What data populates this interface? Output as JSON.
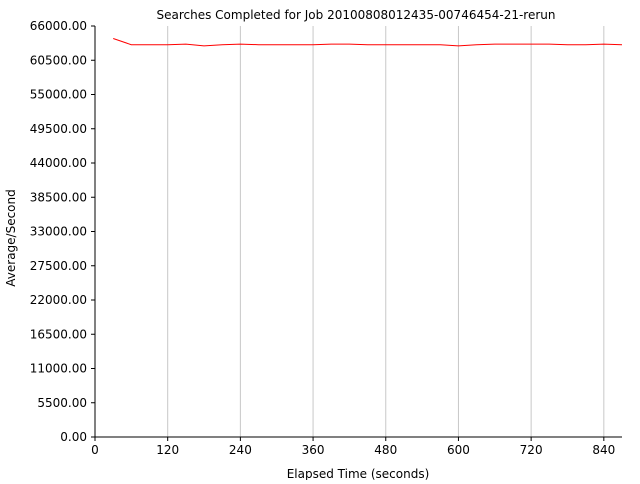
{
  "chart_data": {
    "type": "line",
    "title": "Searches Completed for Job 20100808012435-00746454-21-rerun",
    "xlabel": "Elapsed Time (seconds)",
    "ylabel": "Average/Second",
    "xlim": [
      0,
      870
    ],
    "ylim": [
      0,
      66000
    ],
    "x_ticks": [
      0,
      120,
      240,
      360,
      480,
      600,
      720,
      840
    ],
    "y_ticks": [
      0,
      5500,
      11000,
      16500,
      22000,
      27500,
      33000,
      38500,
      44000,
      49500,
      55000,
      60500,
      66000
    ],
    "x_tick_labels": [
      "0",
      "120",
      "240",
      "360",
      "480",
      "600",
      "720",
      "840"
    ],
    "y_tick_labels": [
      "0.00",
      "5500.00",
      "11000.00",
      "16500.00",
      "22000.00",
      "27500.00",
      "33000.00",
      "38500.00",
      "44000.00",
      "49500.00",
      "55000.00",
      "60500.00",
      "66000.00"
    ],
    "grid": true,
    "series": [
      {
        "color": "#ff0000",
        "x": [
          30,
          60,
          90,
          120,
          150,
          180,
          210,
          240,
          270,
          300,
          330,
          360,
          390,
          420,
          450,
          480,
          510,
          540,
          570,
          600,
          630,
          660,
          690,
          720,
          750,
          780,
          810,
          840,
          870
        ],
        "y": [
          64000,
          63000,
          63000,
          63000,
          63100,
          62800,
          63000,
          63100,
          63000,
          63000,
          63000,
          63000,
          63100,
          63100,
          63000,
          63000,
          63000,
          63000,
          63000,
          62800,
          63000,
          63100,
          63100,
          63100,
          63100,
          63000,
          63000,
          63100,
          63000
        ]
      }
    ]
  }
}
